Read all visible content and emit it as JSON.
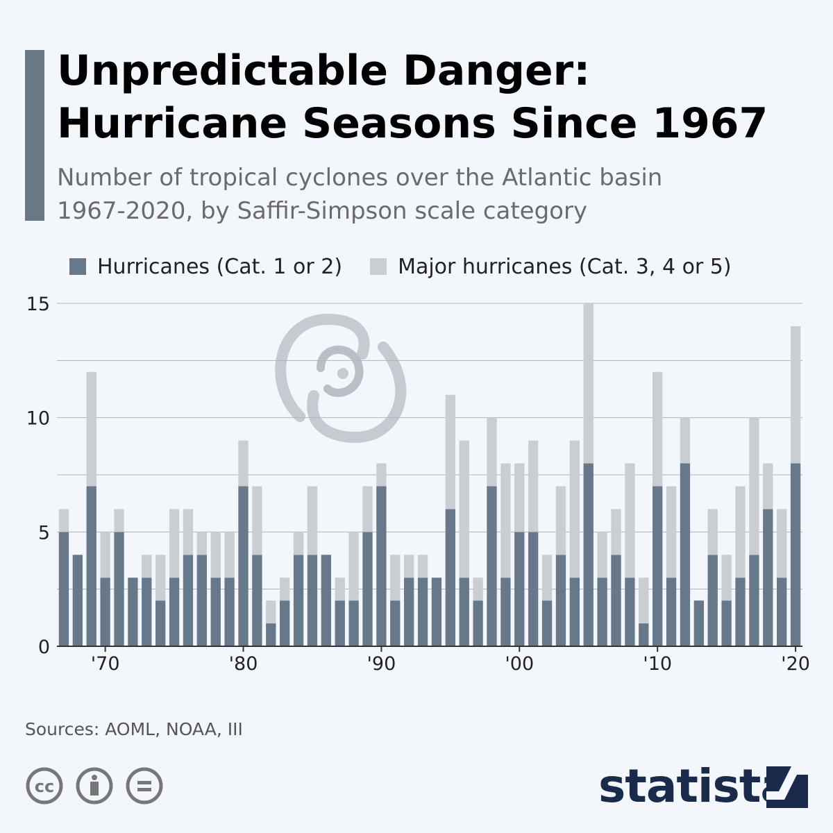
{
  "title": {
    "line1": "Unpredictable Danger:",
    "line2": "Hurricane Seasons Since 1967"
  },
  "subtitle": {
    "line1": "Number of tropical cyclones over the Atlantic basin",
    "line2": "1967-2020, by Saffir-Simpson scale category"
  },
  "legend": {
    "series1": "Hurricanes (Cat. 1 or 2)",
    "series2": "Major hurricanes (Cat. 3, 4 or 5)"
  },
  "colors": {
    "series1": "#66788a",
    "series2": "#c9ced3",
    "grid": "#b0b4b8",
    "axis": "#333333"
  },
  "chart_data": {
    "type": "bar",
    "stacked": true,
    "x": [
      1967,
      1968,
      1969,
      1970,
      1971,
      1972,
      1973,
      1974,
      1975,
      1976,
      1977,
      1978,
      1979,
      1980,
      1981,
      1982,
      1983,
      1984,
      1985,
      1986,
      1987,
      1988,
      1989,
      1990,
      1991,
      1992,
      1993,
      1994,
      1995,
      1996,
      1997,
      1998,
      1999,
      2000,
      2001,
      2002,
      2003,
      2004,
      2005,
      2006,
      2007,
      2008,
      2009,
      2010,
      2011,
      2012,
      2013,
      2014,
      2015,
      2016,
      2017,
      2018,
      2019,
      2020
    ],
    "series": [
      {
        "name": "Hurricanes (Cat. 1 or 2)",
        "values": [
          5,
          4,
          7,
          3,
          5,
          3,
          3,
          2,
          3,
          4,
          4,
          3,
          3,
          7,
          4,
          1,
          2,
          4,
          4,
          4,
          2,
          2,
          5,
          7,
          2,
          3,
          3,
          3,
          6,
          3,
          2,
          7,
          3,
          5,
          5,
          2,
          4,
          3,
          8,
          3,
          4,
          3,
          1,
          7,
          3,
          8,
          2,
          4,
          2,
          3,
          4,
          6,
          3,
          8
        ]
      },
      {
        "name": "Major hurricanes (Cat. 3, 4 or 5)",
        "values": [
          1,
          0,
          5,
          2,
          1,
          0,
          1,
          2,
          3,
          2,
          1,
          2,
          2,
          2,
          3,
          1,
          1,
          1,
          3,
          0,
          1,
          3,
          2,
          1,
          2,
          1,
          1,
          0,
          5,
          6,
          1,
          3,
          5,
          3,
          4,
          2,
          3,
          6,
          7,
          2,
          2,
          5,
          2,
          5,
          4,
          2,
          0,
          2,
          2,
          4,
          6,
          2,
          3,
          6
        ]
      }
    ],
    "xtick_labels": [
      "'70",
      "'80",
      "'90",
      "'00",
      "'10",
      "'20"
    ],
    "xtick_values": [
      1970,
      1980,
      1990,
      2000,
      2010,
      2020
    ],
    "ytick_labels": [
      "0",
      "5",
      "10",
      "15"
    ],
    "ytick_values": [
      0,
      5,
      10,
      15
    ],
    "ylim": [
      0,
      15
    ],
    "grid": true
  },
  "source": "Sources: AOML, NOAA, III",
  "brand": "statista"
}
